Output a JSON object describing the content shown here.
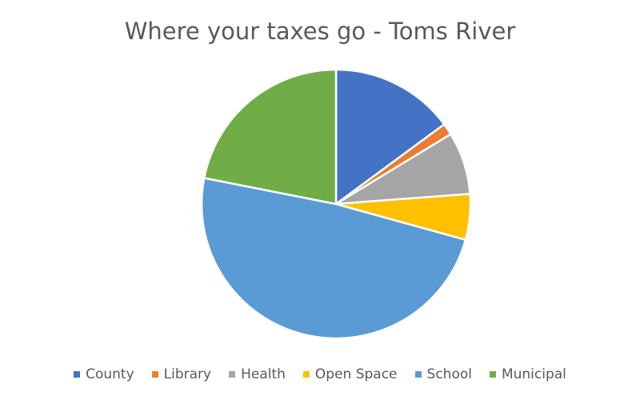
{
  "chart_data": {
    "type": "pie",
    "title": "Where your taxes go - Toms River",
    "categories": [
      "County",
      "Library",
      "Health",
      "Open Space",
      "School",
      "Municipal"
    ],
    "values": [
      14.9,
      1.4,
      7.5,
      5.5,
      48.8,
      21.9
    ],
    "colors": [
      "#4472C4",
      "#ED7D31",
      "#A5A5A5",
      "#FFC000",
      "#5B9BD5",
      "#70AD47"
    ],
    "start_angle_deg": 0,
    "direction": "clockwise",
    "legend_position": "bottom"
  }
}
